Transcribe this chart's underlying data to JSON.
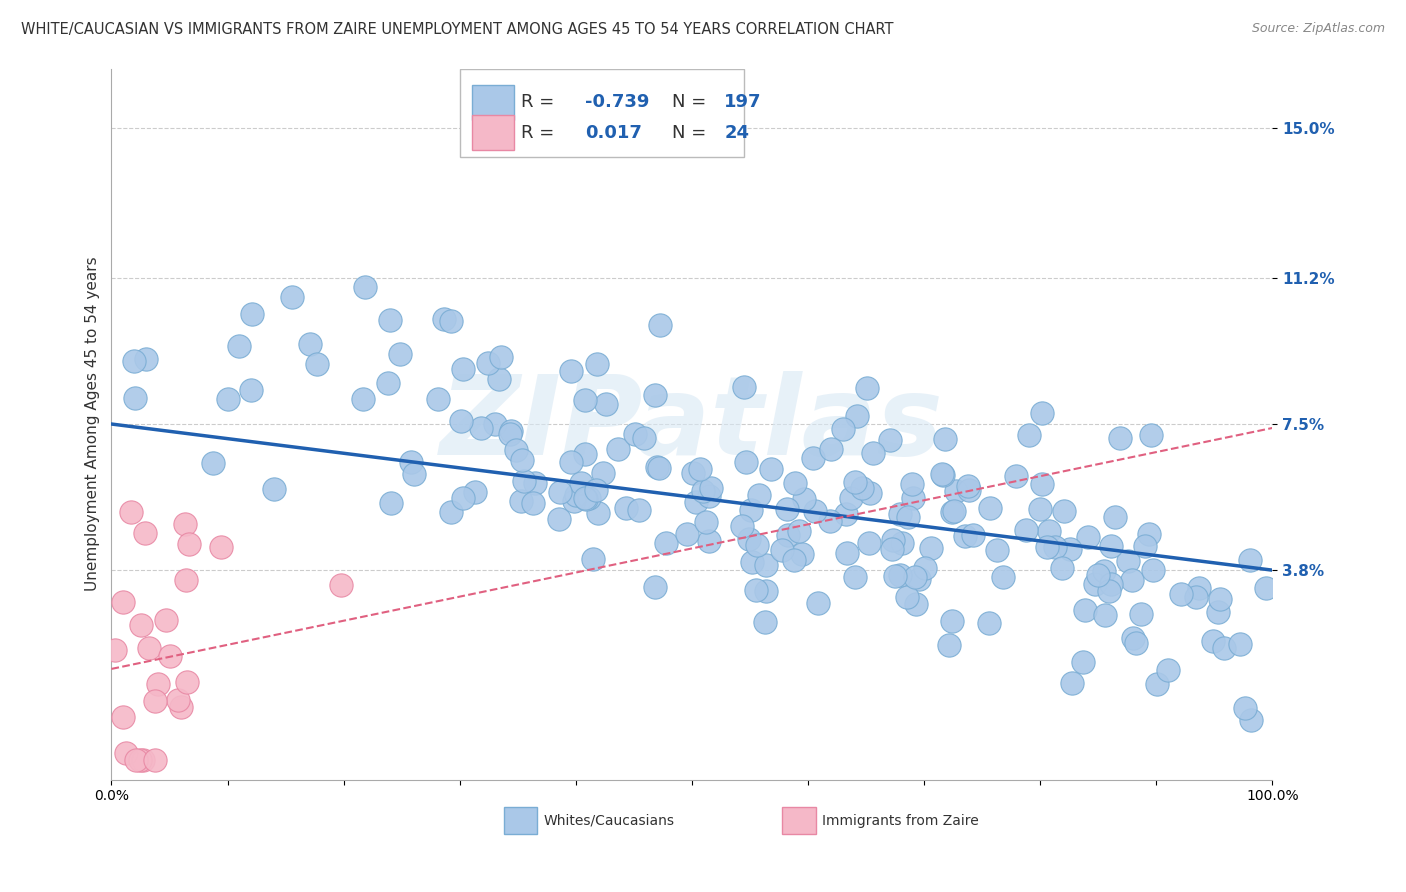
{
  "title": "WHITE/CAUCASIAN VS IMMIGRANTS FROM ZAIRE UNEMPLOYMENT AMONG AGES 45 TO 54 YEARS CORRELATION CHART",
  "source": "Source: ZipAtlas.com",
  "ylabel": "Unemployment Among Ages 45 to 54 years",
  "xlim": [
    0,
    1.0
  ],
  "ylim": [
    -0.015,
    0.165
  ],
  "yticks": [
    0.038,
    0.075,
    0.112,
    0.15
  ],
  "ytick_labels": [
    "3.8%",
    "7.5%",
    "11.2%",
    "15.0%"
  ],
  "xticks": [
    0.0,
    0.1,
    0.2,
    0.3,
    0.4,
    0.5,
    0.6,
    0.7,
    0.8,
    0.9,
    1.0
  ],
  "xtick_labels": [
    "0.0%",
    "",
    "",
    "",
    "",
    "",
    "",
    "",
    "",
    "",
    "100.0%"
  ],
  "r_blue": -0.739,
  "n_blue": 197,
  "r_pink": 0.017,
  "n_pink": 24,
  "blue_dot_color": "#aac8e8",
  "blue_dot_edge": "#7aadd4",
  "pink_dot_color": "#f5b8c8",
  "pink_dot_edge": "#e888a4",
  "blue_line_color": "#2060b0",
  "pink_line_color": "#e06080",
  "legend_label_blue": "Whites/Caucasians",
  "legend_label_pink": "Immigrants from Zaire",
  "watermark": "ZIPatlas",
  "blue_seed": 42,
  "pink_seed": 123,
  "grid_color": "#cccccc",
  "background_color": "#ffffff",
  "title_fontsize": 10.5,
  "source_fontsize": 9,
  "axis_fontsize": 11,
  "tick_fontsize": 10,
  "legend_fontsize": 13,
  "r_label_color": "#2060b0",
  "n_label_color": "#2060b0",
  "blue_trendline_start_y": 0.075,
  "blue_trendline_end_y": 0.038,
  "pink_trendline_start_y": 0.013,
  "pink_trendline_end_y": 0.074
}
